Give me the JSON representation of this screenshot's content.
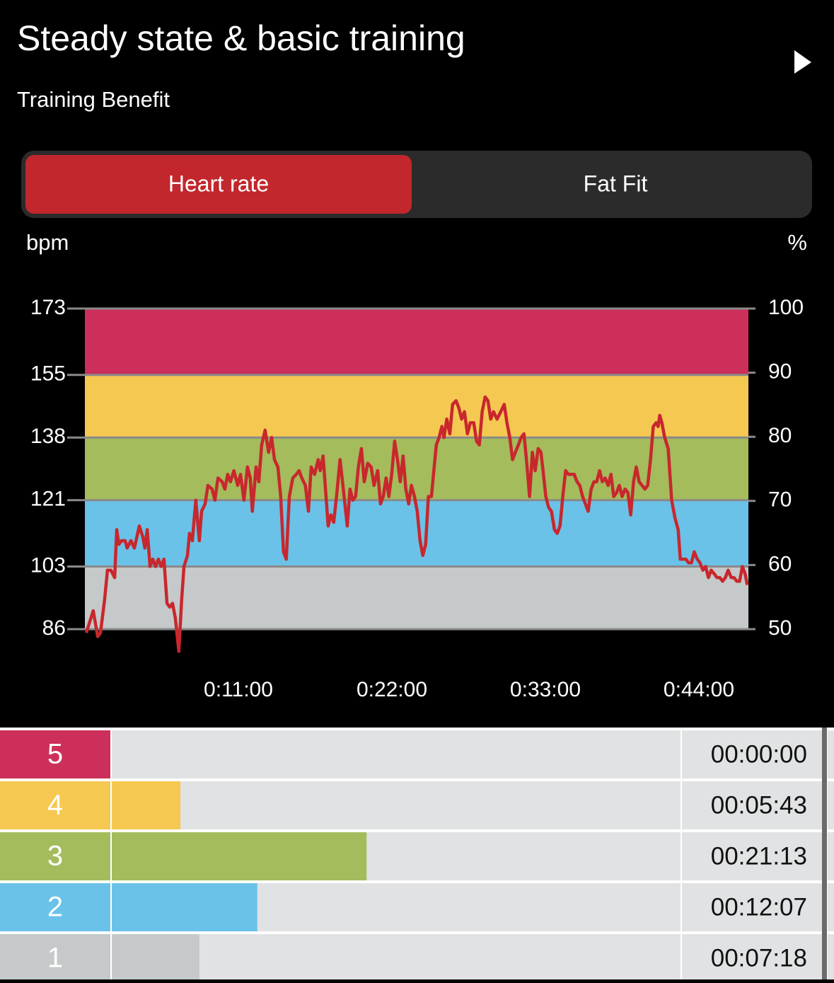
{
  "header": {
    "title": "Steady state & basic training",
    "subtitle": "Training Benefit"
  },
  "tabs": [
    "Heart rate",
    "Fat Fit"
  ],
  "chart_data": {
    "type": "line",
    "ylabel": "bpm",
    "y2label": "%",
    "x": [
      6,
      21,
      36,
      55,
      67,
      85,
      97,
      112,
      128,
      137,
      146,
      158,
      173,
      182,
      198,
      213,
      234,
      249,
      258,
      268,
      280,
      292,
      304,
      316,
      328,
      340,
      353,
      365,
      377,
      389,
      404,
      416,
      426,
      441,
      450,
      462,
      477,
      492,
      502,
      517,
      529,
      547,
      559,
      572,
      590,
      602,
      614,
      626,
      641,
      657,
      669,
      684,
      699,
      711,
      720,
      736,
      748,
      760,
      775,
      790,
      803,
      815,
      830,
      842,
      854,
      866,
      879,
      894,
      909,
      921,
      933,
      948,
      961,
      973,
      988,
      1003,
      1012,
      1024,
      1037,
      1046,
      1058,
      1070,
      1082,
      1097,
      1113,
      1128,
      1140,
      1152,
      1164,
      1176,
      1189,
      1201,
      1216,
      1231,
      1243,
      1259,
      1271,
      1283,
      1295,
      1307,
      1319,
      1332,
      1344,
      1356,
      1368,
      1380,
      1392,
      1404,
      1417,
      1429,
      1441,
      1453,
      1465,
      1477,
      1490,
      1502,
      1511,
      1523,
      1535,
      1544,
      1556,
      1569,
      1581,
      1596,
      1608,
      1620,
      1632,
      1645,
      1657,
      1672,
      1684,
      1696,
      1708,
      1721,
      1733,
      1745,
      1757,
      1772,
      1788,
      1803,
      1815,
      1827,
      1839,
      1851,
      1864,
      1876,
      1888,
      1900,
      1912,
      1924,
      1936,
      1949,
      1961,
      1970,
      1982,
      1994,
      2006,
      2019,
      2031,
      2043,
      2055,
      2067,
      2079,
      2092,
      2104,
      2116,
      2128,
      2140,
      2152,
      2164,
      2177,
      2189,
      2201,
      2213,
      2225,
      2237,
      2250,
      2262,
      2274,
      2286,
      2298,
      2310,
      2323,
      2335,
      2347,
      2359,
      2371,
      2383,
      2396,
      2408,
      2420,
      2432,
      2444,
      2456,
      2465,
      2472,
      2481,
      2493,
      2508,
      2523,
      2538,
      2551,
      2560,
      2572,
      2584,
      2596,
      2608,
      2620,
      2633,
      2645,
      2657,
      2669,
      2681,
      2693,
      2706,
      2718,
      2730,
      2742,
      2754,
      2766,
      2779,
      2791,
      2803,
      2815,
      2827,
      2839,
      2848
    ],
    "series": [
      {
        "color": "#c8272d",
        "values": [
          85,
          88,
          91,
          84,
          85,
          94,
          102,
          102,
          100,
          113,
          109,
          110,
          110,
          108,
          110,
          108,
          114,
          111,
          108,
          113,
          103,
          105,
          103,
          105,
          103,
          105,
          93,
          92,
          93,
          89,
          80,
          94,
          103,
          106,
          112,
          110,
          121,
          110,
          118,
          120,
          125,
          124,
          121,
          127,
          126,
          124,
          128,
          126,
          129,
          125,
          128,
          121,
          130,
          127,
          118,
          130,
          126,
          136,
          140,
          134,
          138,
          132,
          130,
          122,
          107,
          105,
          122,
          127,
          128,
          129,
          127,
          125,
          118,
          130,
          128,
          132,
          129,
          133,
          122,
          114,
          117,
          115,
          122,
          132,
          123,
          114,
          124,
          121,
          122,
          130,
          135,
          126,
          131,
          130,
          125,
          129,
          120,
          122,
          127,
          122,
          128,
          137,
          132,
          126,
          133,
          124,
          120,
          125,
          122,
          118,
          110,
          106,
          109,
          122,
          122,
          130,
          136,
          138,
          141,
          138,
          143,
          139,
          147,
          148,
          146,
          143,
          145,
          139,
          142,
          142,
          137,
          136,
          145,
          149,
          148,
          143,
          145,
          143,
          145,
          147,
          142,
          138,
          132,
          134,
          136,
          138,
          139,
          131,
          122,
          134,
          129,
          135,
          134,
          129,
          122,
          119,
          118,
          113,
          112,
          114,
          122,
          129,
          128,
          128,
          128,
          126,
          125,
          122,
          120,
          118,
          124,
          126,
          126,
          129,
          126,
          127,
          125,
          128,
          122,
          123,
          125,
          122,
          124,
          123,
          117,
          126,
          130,
          126,
          125,
          124,
          125,
          132,
          141,
          142,
          141,
          144,
          142,
          138,
          135,
          121,
          116,
          113,
          105,
          105,
          105,
          104,
          104,
          107,
          105,
          104,
          102,
          103,
          100,
          102,
          101,
          100,
          100,
          99,
          100,
          102,
          100,
          100,
          99,
          99,
          103,
          101,
          98
        ]
      }
    ],
    "xlim": [
      0,
      2853
    ],
    "xticks": [
      {
        "value": 660,
        "label": "0:11:00"
      },
      {
        "value": 1320,
        "label": "0:22:00"
      },
      {
        "value": 1980,
        "label": "0:33:00"
      },
      {
        "value": 2640,
        "label": "0:44:00"
      }
    ],
    "ylim": [
      86,
      173
    ],
    "yticks": [
      86,
      103,
      121,
      138,
      155,
      173
    ],
    "y2lim": [
      50,
      100
    ],
    "y2ticks": [
      50,
      60,
      70,
      80,
      90,
      100
    ]
  },
  "zones": [
    {
      "name": "5",
      "color": "#cc2f5a",
      "time": "00:00:00"
    },
    {
      "name": "4",
      "color": "#f5c851",
      "time": "00:05:43"
    },
    {
      "name": "3",
      "color": "#a4bc5c",
      "time": "00:21:13"
    },
    {
      "name": "2",
      "color": "#6ac2e8",
      "time": "00:12:07"
    },
    {
      "name": "1",
      "color": "#c5c9c9",
      "time": "00:07:18"
    }
  ]
}
